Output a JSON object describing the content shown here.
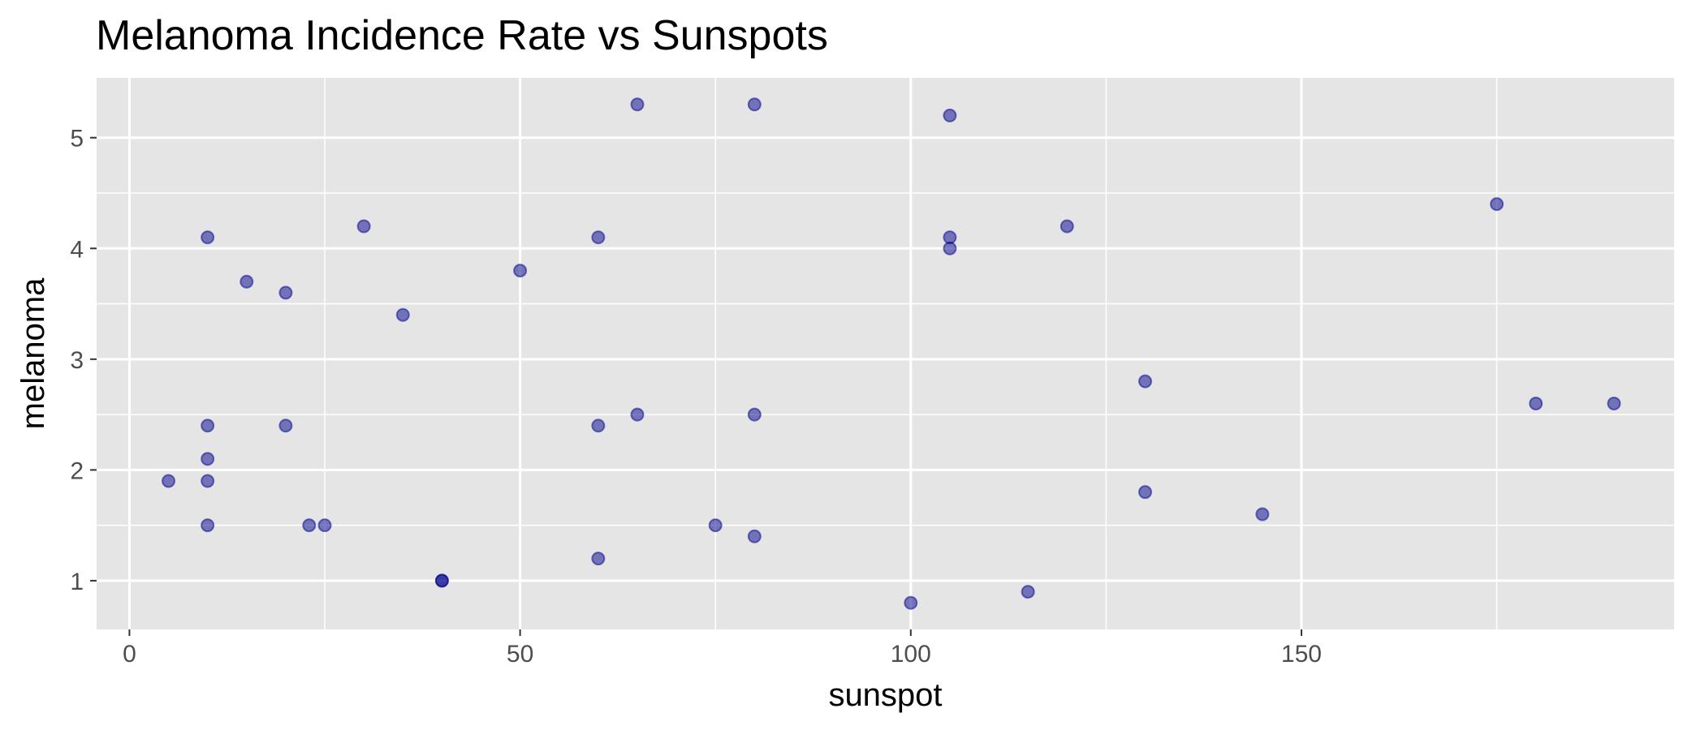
{
  "chart_data": {
    "type": "scatter",
    "title": "Melanoma Incidence Rate vs Sunspots",
    "xlabel": "sunspot",
    "ylabel": "melanoma",
    "xlim": [
      -4.2,
      197.7
    ],
    "ylim": [
      0.56,
      5.54
    ],
    "x_major_ticks": [
      0,
      50,
      100,
      150
    ],
    "x_minor_ticks": [
      25,
      75,
      125,
      175
    ],
    "y_major_ticks": [
      1,
      2,
      3,
      4,
      5
    ],
    "y_minor_ticks": [
      1.5,
      2.5,
      3.5,
      4.5
    ],
    "grid": true,
    "background_color": "#e5e5e5",
    "grid_color": "#ffffff",
    "point_color": "#00008b",
    "point_alpha": 0.5,
    "points": [
      {
        "x": 5,
        "y": 1.9
      },
      {
        "x": 10,
        "y": 4.1
      },
      {
        "x": 10,
        "y": 2.4
      },
      {
        "x": 10,
        "y": 2.1
      },
      {
        "x": 10,
        "y": 1.9
      },
      {
        "x": 10,
        "y": 1.5
      },
      {
        "x": 15,
        "y": 3.7
      },
      {
        "x": 20,
        "y": 3.6
      },
      {
        "x": 20,
        "y": 2.4
      },
      {
        "x": 23,
        "y": 1.5
      },
      {
        "x": 25,
        "y": 1.5
      },
      {
        "x": 30,
        "y": 4.2
      },
      {
        "x": 35,
        "y": 3.4
      },
      {
        "x": 40,
        "y": 1.0
      },
      {
        "x": 40,
        "y": 1.0
      },
      {
        "x": 50,
        "y": 3.8
      },
      {
        "x": 60,
        "y": 4.1
      },
      {
        "x": 60,
        "y": 2.4
      },
      {
        "x": 60,
        "y": 1.2
      },
      {
        "x": 65,
        "y": 5.3
      },
      {
        "x": 65,
        "y": 2.5
      },
      {
        "x": 75,
        "y": 1.5
      },
      {
        "x": 80,
        "y": 5.3
      },
      {
        "x": 80,
        "y": 2.5
      },
      {
        "x": 80,
        "y": 1.4
      },
      {
        "x": 100,
        "y": 0.8
      },
      {
        "x": 105,
        "y": 5.2
      },
      {
        "x": 105,
        "y": 4.1
      },
      {
        "x": 105,
        "y": 4.0
      },
      {
        "x": 115,
        "y": 0.9
      },
      {
        "x": 120,
        "y": 4.2
      },
      {
        "x": 130,
        "y": 2.8
      },
      {
        "x": 130,
        "y": 1.8
      },
      {
        "x": 145,
        "y": 1.6
      },
      {
        "x": 175,
        "y": 4.4
      },
      {
        "x": 180,
        "y": 2.6
      },
      {
        "x": 190,
        "y": 2.6
      }
    ]
  }
}
